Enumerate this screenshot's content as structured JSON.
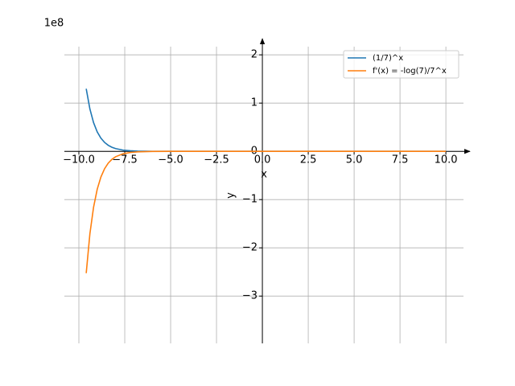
{
  "chart_data": {
    "type": "line",
    "x_label": "x",
    "y_label": "y",
    "y_offset_label": "1e8",
    "x": [
      -9.6,
      -9.4,
      -9.2,
      -9.0,
      -8.8,
      -8.6,
      -8.4,
      -8.2,
      -8.0,
      -7.6,
      -7.2,
      -6.8,
      -6,
      -5,
      -4,
      -2,
      0,
      5,
      10
    ],
    "series": [
      {
        "name": "(1/7)^x",
        "color": "#1f77b4",
        "values": [
          1.297,
          0.879,
          0.5955,
          0.4035,
          0.2734,
          0.1853,
          0.1255,
          0.0851,
          0.0576,
          0.02646,
          0.01215,
          0.00558,
          0.00118,
          0.000168,
          2.4e-05,
          4.9e-07,
          1e-08,
          5.95e-13,
          3.5e-17
        ]
      },
      {
        "name": "f'(x) = -log(7)/7^x",
        "color": "#ff7f0e",
        "values": [
          -2.524,
          -1.71,
          -1.159,
          -0.7852,
          -0.532,
          -0.3606,
          -0.2442,
          -0.1656,
          -0.1121,
          -0.05149,
          -0.02364,
          -0.01086,
          -0.002296,
          -0.000327,
          -4.67e-05,
          -9.53e-07,
          -1.946e-08,
          -1.158e-12,
          -6.8e-17
        ]
      }
    ],
    "xlim": [
      -10.79,
      10.96
    ],
    "ylim": [
      -3.98,
      2.17
    ],
    "xticks": [
      {
        "value": -10,
        "label": "−10.0"
      },
      {
        "value": -7.5,
        "label": "−7.5"
      },
      {
        "value": -5,
        "label": "−5.0"
      },
      {
        "value": -2.5,
        "label": "−2.5"
      },
      {
        "value": 0,
        "label": "0.0"
      },
      {
        "value": 2.5,
        "label": "2.5"
      },
      {
        "value": 5,
        "label": "5.0"
      },
      {
        "value": 7.5,
        "label": "7.5"
      },
      {
        "value": 10,
        "label": "10.0"
      }
    ],
    "yticks": [
      {
        "value": -3,
        "label": "−3"
      },
      {
        "value": -2,
        "label": "−2"
      },
      {
        "value": -1,
        "label": "−1"
      },
      0,
      1,
      2
    ],
    "grid": true,
    "legend": "upper right"
  }
}
